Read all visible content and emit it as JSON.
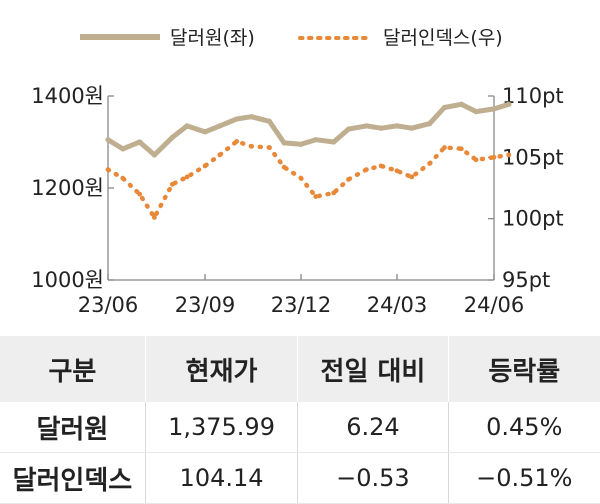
{
  "chart_data": {
    "type": "line",
    "x_ticks": [
      "23/06",
      "23/09",
      "23/12",
      "24/03",
      "24/06"
    ],
    "y_left": {
      "ticks": [
        "1400원",
        "1200원",
        "1000원"
      ],
      "range": [
        1000,
        1400
      ]
    },
    "y_right": {
      "ticks": [
        "110pt",
        "105pt",
        "100pt",
        "95pt"
      ],
      "range": [
        95,
        110
      ]
    },
    "grid": false,
    "legend_position": "top",
    "series": [
      {
        "name": "달러원(좌)",
        "axis": "left",
        "style": "solid",
        "color": "#bfae8f",
        "x": [
          "2023-06-01",
          "2023-06-15",
          "2023-07-01",
          "2023-07-15",
          "2023-08-01",
          "2023-08-15",
          "2023-09-01",
          "2023-09-15",
          "2023-10-01",
          "2023-10-15",
          "2023-11-01",
          "2023-11-15",
          "2023-12-01",
          "2023-12-15",
          "2024-01-01",
          "2024-01-15",
          "2024-02-01",
          "2024-02-15",
          "2024-03-01",
          "2024-03-15",
          "2024-04-01",
          "2024-04-15",
          "2024-05-01",
          "2024-05-15",
          "2024-06-01",
          "2024-06-15"
        ],
        "values": [
          1305,
          1285,
          1300,
          1272,
          1310,
          1335,
          1322,
          1335,
          1350,
          1355,
          1345,
          1298,
          1295,
          1305,
          1300,
          1328,
          1335,
          1330,
          1335,
          1330,
          1340,
          1375,
          1382,
          1366,
          1372,
          1382
        ]
      },
      {
        "name": "달러인덱스(우)",
        "axis": "right",
        "style": "dotted",
        "color": "#e8893a",
        "x": [
          "2023-06-01",
          "2023-06-15",
          "2023-07-01",
          "2023-07-15",
          "2023-08-01",
          "2023-08-15",
          "2023-09-01",
          "2023-09-15",
          "2023-10-01",
          "2023-10-15",
          "2023-11-01",
          "2023-11-15",
          "2023-12-01",
          "2023-12-15",
          "2024-01-01",
          "2024-01-15",
          "2024-02-01",
          "2024-02-15",
          "2024-03-01",
          "2024-03-15",
          "2024-04-01",
          "2024-04-15",
          "2024-05-01",
          "2024-05-15",
          "2024-06-01",
          "2024-06-15"
        ],
        "values": [
          104.0,
          103.3,
          102.0,
          100.1,
          102.8,
          103.4,
          104.3,
          105.2,
          106.3,
          105.9,
          105.8,
          104.2,
          103.3,
          101.8,
          102.1,
          103.2,
          104.0,
          104.3,
          103.9,
          103.4,
          104.5,
          105.8,
          105.7,
          104.8,
          105.0,
          105.2
        ]
      }
    ]
  },
  "table": {
    "headers": [
      "구분",
      "현재가",
      "전일 대비",
      "등락률"
    ],
    "rows": [
      {
        "name": "달러원",
        "price": "1,375.99",
        "change": "6.24",
        "rate": "0.45%"
      },
      {
        "name": "달러인덱스",
        "price": "104.14",
        "change": "−0.53",
        "rate": "−0.51%"
      }
    ]
  }
}
